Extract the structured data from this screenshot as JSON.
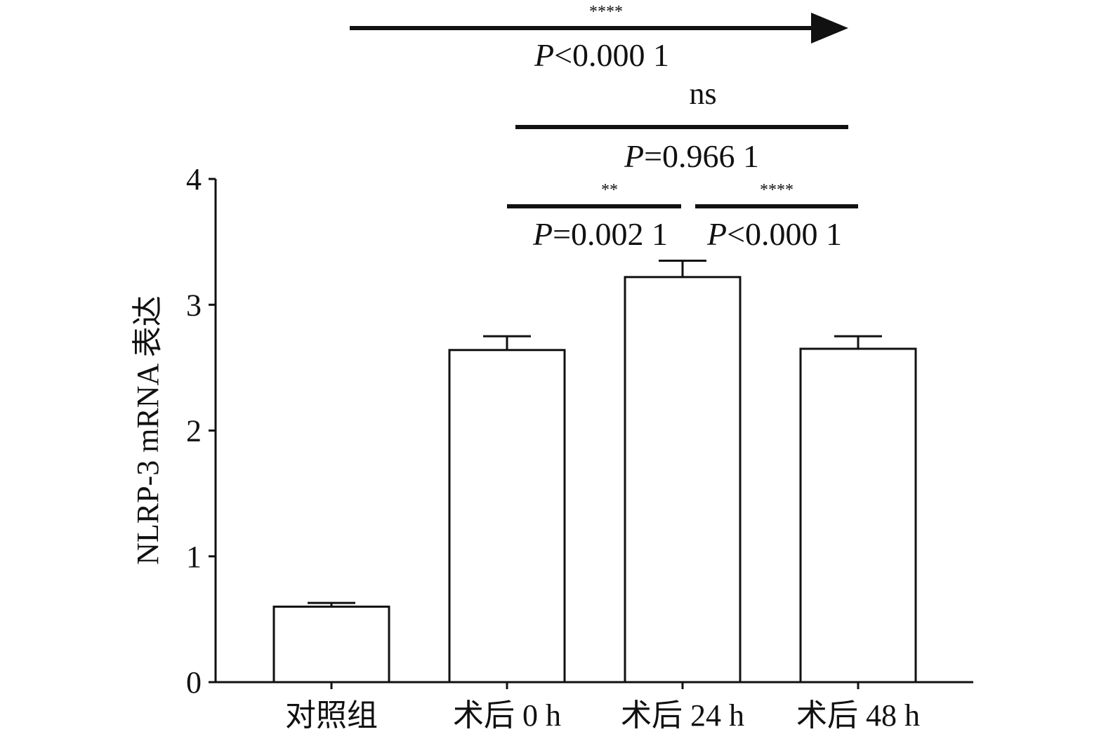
{
  "chart_data": {
    "type": "bar",
    "y_label": "NLRP-3 mRNA 表达",
    "categories": [
      "对照组",
      "术后 0 h",
      "术后 24 h",
      "术后 48 h"
    ],
    "values": [
      0.6,
      2.64,
      3.22,
      2.65
    ],
    "errors": [
      0.03,
      0.11,
      0.13,
      0.1
    ],
    "color": "#ffffff",
    "ylim": [
      0,
      4
    ],
    "yticks": [
      0,
      1,
      2,
      3,
      4
    ],
    "annotations": [
      {
        "stars": "****",
        "label": "P<0.000 1"
      },
      {
        "stars": "ns",
        "label": "P=0.966 1"
      },
      {
        "stars": "**",
        "label": "P=0.002 1"
      },
      {
        "stars": "****",
        "label": "P<0.000 1"
      }
    ]
  }
}
